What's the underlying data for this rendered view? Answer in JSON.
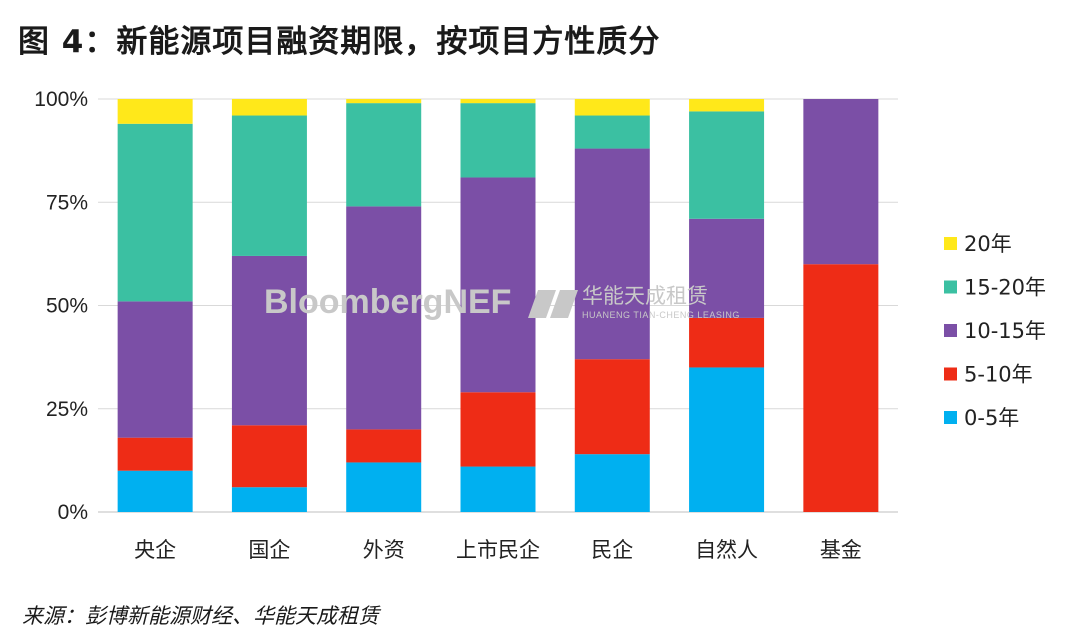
{
  "title": "图 4：新能源项目融资期限，按项目方性质分",
  "source": "来源：彭博新能源财经、华能天成租赁",
  "watermark": {
    "brand": "BloombergNEF",
    "partner_cn": "华能天成租赁",
    "partner_en": "HUANENG TIAN-CHENG LEASING"
  },
  "chart_data": {
    "type": "bar",
    "stacked": true,
    "categories": [
      "央企",
      "国企",
      "外资",
      "上市民企",
      "民企",
      "自然人",
      "基金"
    ],
    "yticks": [
      "0%",
      "25%",
      "50%",
      "75%",
      "100%"
    ],
    "ylim": [
      0,
      100
    ],
    "legend_position": "right",
    "series": [
      {
        "name": "0-5年",
        "color": "#00b0f0",
        "values": [
          10,
          6,
          12,
          11,
          14,
          35,
          0
        ]
      },
      {
        "name": "5-10年",
        "color": "#ee2c16",
        "values": [
          8,
          15,
          8,
          18,
          23,
          12,
          60
        ]
      },
      {
        "name": "10-15年",
        "color": "#7b4fa6",
        "values": [
          33,
          41,
          54,
          52,
          51,
          24,
          40
        ]
      },
      {
        "name": "15-20年",
        "color": "#3bc0a2",
        "values": [
          43,
          34,
          25,
          18,
          8,
          26,
          0
        ]
      },
      {
        "name": "20年",
        "color": "#ffe81a",
        "values": [
          6,
          4,
          1,
          1,
          4,
          3,
          0
        ]
      }
    ]
  }
}
